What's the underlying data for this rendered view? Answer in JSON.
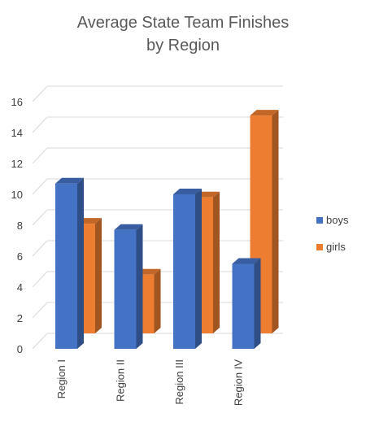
{
  "chart_data": {
    "type": "bar",
    "title": "Average State Team Finishes by Region",
    "title_lines": [
      "Average State Team Finishes",
      "by Region"
    ],
    "categories": [
      "Region I",
      "Region II",
      "Region III",
      "Region IV"
    ],
    "series": [
      {
        "name": "boys",
        "values": [
          10.7,
          7.7,
          10.0,
          5.5
        ],
        "color": "#4472C4"
      },
      {
        "name": "girls",
        "values": [
          7.1,
          3.8,
          8.8,
          14.1
        ],
        "color": "#ED7D31"
      }
    ],
    "ylim": [
      0,
      16
    ],
    "yticks": [
      0,
      2,
      4,
      6,
      8,
      10,
      12,
      14,
      16
    ],
    "grid": true,
    "legend": "right",
    "style_3d": true
  }
}
